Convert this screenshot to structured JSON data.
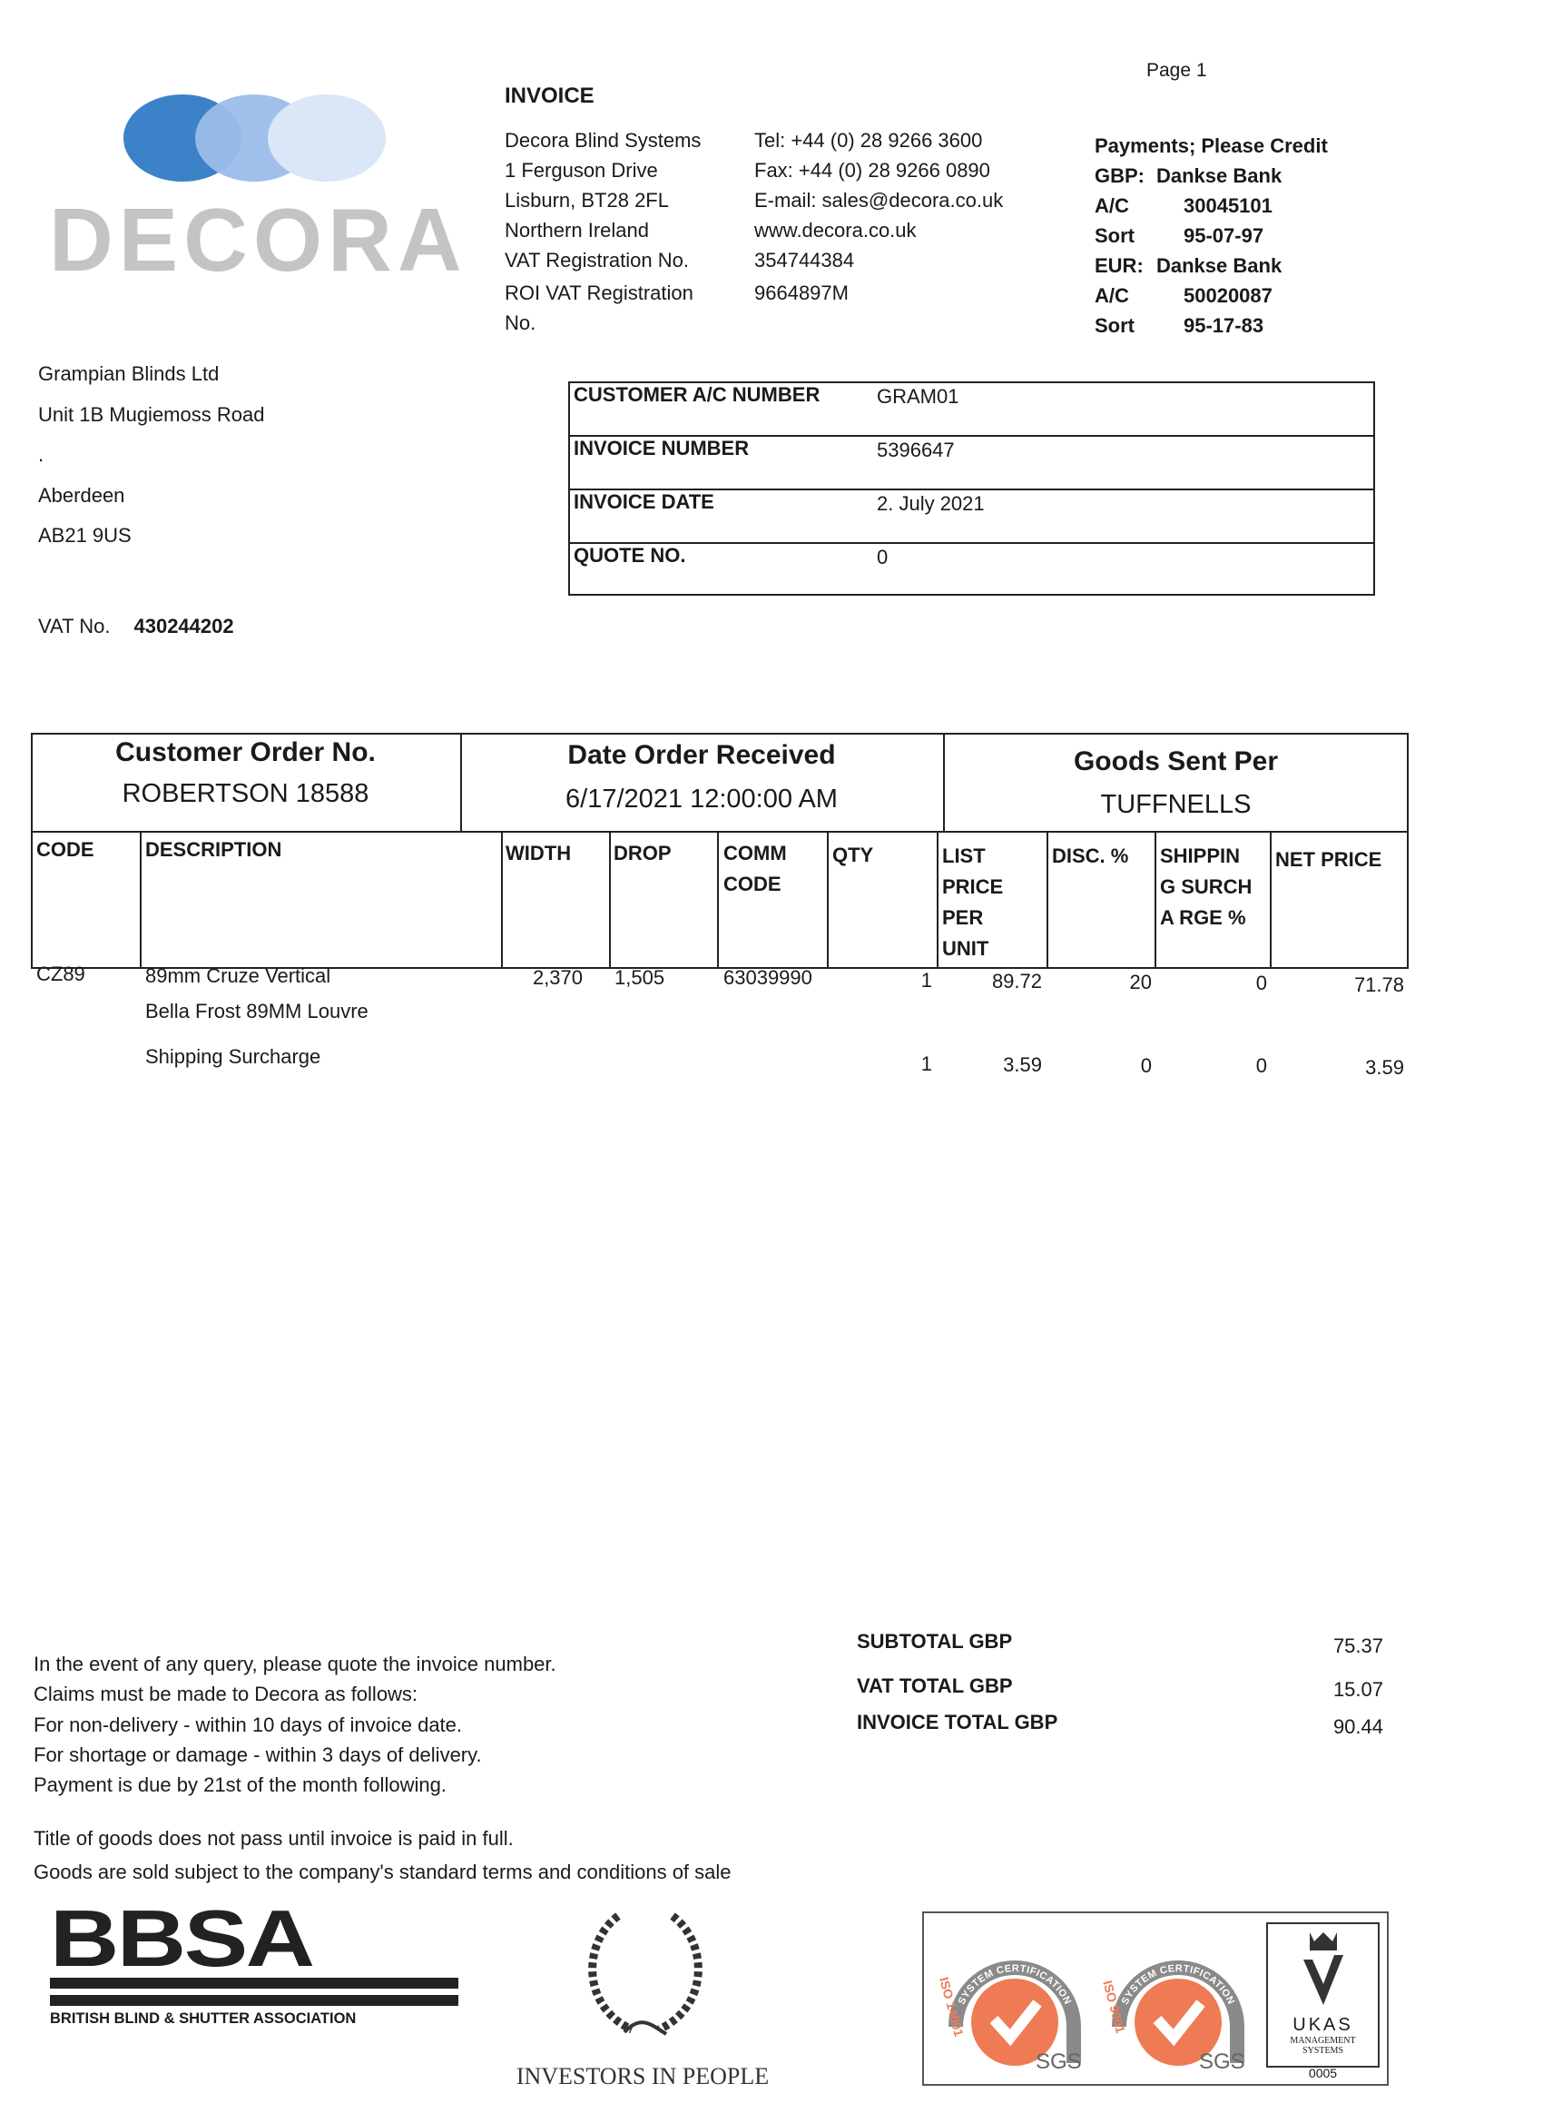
{
  "page_label": "Page 1",
  "logo": {
    "text": "DECORA",
    "colors": [
      "#3b82c9",
      "#9cbcea",
      "#dbe6f7"
    ]
  },
  "title": "INVOICE",
  "company": {
    "address_lines": [
      "Decora Blind Systems",
      "1 Ferguson Drive",
      "Lisburn, BT28 2FL",
      "Northern Ireland",
      "VAT Registration No.",
      "ROI VAT Registration",
      "No."
    ],
    "contact_lines": [
      "Tel: +44 (0) 28 9266 3600",
      "Fax: +44 (0) 28 9266 0890",
      "E-mail: sales@decora.co.uk",
      "www.decora.co.uk",
      "354744384",
      "9664897M"
    ]
  },
  "payments": {
    "heading": "Payments; Please Credit",
    "rows": [
      {
        "label": "GBP:",
        "value": "Dankse Bank"
      },
      {
        "label": "A/C",
        "value": "30045101"
      },
      {
        "label": "Sort",
        "value": "95-07-97"
      },
      {
        "label": "EUR:",
        "value": "Dankse Bank"
      },
      {
        "label": "A/C",
        "value": "50020087"
      },
      {
        "label": "Sort",
        "value": "95-17-83"
      }
    ]
  },
  "customer": {
    "address_lines": [
      "Grampian Blinds Ltd",
      "Unit 1B Mugiemoss Road",
      ".",
      "Aberdeen",
      "AB21 9US"
    ],
    "vat_label": "VAT No.",
    "vat_value": "430244202"
  },
  "info_box": [
    {
      "label": "CUSTOMER A/C NUMBER",
      "value": "GRAM01"
    },
    {
      "label": "INVOICE NUMBER",
      "value": "5396647"
    },
    {
      "label": "INVOICE DATE",
      "value": "2. July 2021"
    },
    {
      "label": "QUOTE NO.",
      "value": "0"
    }
  ],
  "order": {
    "customer_order_label": "Customer Order No.",
    "customer_order_value": "ROBERTSON 18588",
    "date_received_label": "Date Order Received",
    "date_received_value": "6/17/2021 12:00:00 AM",
    "goods_sent_label": "Goods Sent Per",
    "goods_sent_value": "TUFFNELLS"
  },
  "items": {
    "columns": [
      "CODE",
      "DESCRIPTION",
      "WIDTH",
      "DROP",
      "COMM CODE",
      "QTY",
      "LIST PRICE PER UNIT",
      "DISC. %",
      "SHIPPIN G SURCHA RGE %",
      "NET PRICE"
    ],
    "rows": [
      {
        "code": "CZ89",
        "description": "89mm Cruze Vertical",
        "description2": "Bella Frost 89MM Louvre",
        "width": "2,370",
        "drop": "1,505",
        "comm_code": "63039990",
        "qty": "1",
        "list_price": "89.72",
        "disc": "20",
        "ship_surcharge": "0",
        "net_price": "71.78"
      },
      {
        "code": "",
        "description": "Shipping Surcharge",
        "description2": "",
        "width": "",
        "drop": "",
        "comm_code": "",
        "qty": "1",
        "list_price": "3.59",
        "disc": "0",
        "ship_surcharge": "0",
        "net_price": "3.59"
      }
    ]
  },
  "notes": [
    "In the event of any query, please quote the invoice number.",
    "Claims must be made to Decora as follows:",
    "For non-delivery - within 10 days of invoice date.",
    "For shortage or damage - within 3 days of delivery.",
    "Payment is due by 21st of the month following.",
    "Title of goods does not pass until invoice is paid in full.",
    "Goods are sold subject to the company's standard terms and conditions of sale"
  ],
  "totals": [
    {
      "label": "SUBTOTAL GBP",
      "value": "75.37"
    },
    {
      "label": "VAT TOTAL GBP",
      "value": "15.07"
    },
    {
      "label": "INVOICE TOTAL GBP",
      "value": "90.44"
    }
  ],
  "footer_logos": {
    "bbsa": "BBSA",
    "bbsa_sub": "BRITISH BLIND & SHUTTER ASSOCIATION",
    "iip": "INVESTORS IN PEOPLE",
    "sgs1_arc": "SYSTEM CERTIFICATION",
    "sgs1_std": "ISO 14001",
    "sgs1_brand": "SGS",
    "sgs2_arc": "SYSTEM CERTIFICATION",
    "sgs2_std": "ISO 9001",
    "sgs2_brand": "SGS",
    "ukas": "UKAS",
    "ukas_sub": "MANAGEMENT SYSTEMS",
    "ukas_num": "0005",
    "sgs_color": "#ee7b54"
  }
}
